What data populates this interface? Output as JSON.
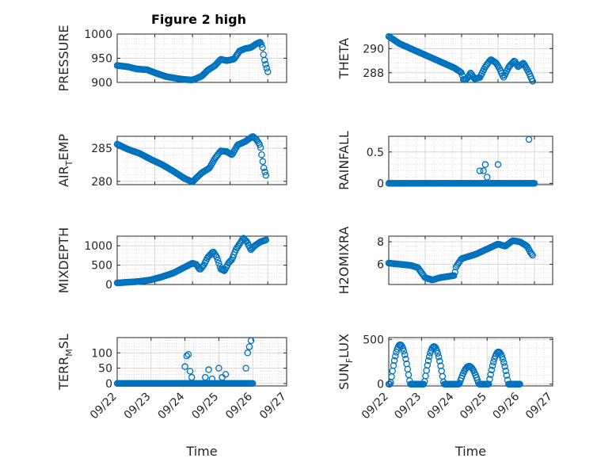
{
  "figure": {
    "title": "Figure 2 high"
  },
  "chart_data": [
    {
      "type": "scatter",
      "ylabel": "PRESSURE",
      "xlabel": "",
      "title": "Figure 2 high",
      "xlim": [
        "09/22",
        "09/26 12:00"
      ],
      "ylim": [
        900,
        1000
      ],
      "yticks": [
        900,
        950,
        1000
      ],
      "ytick_labels": [
        "900",
        "950",
        "1000"
      ],
      "grid": true,
      "minor_grid": true,
      "marker_color": "#0072BD",
      "keypoints": [
        [
          0.0,
          935
        ],
        [
          0.3,
          932
        ],
        [
          0.5,
          928
        ],
        [
          0.8,
          926
        ],
        [
          1.0,
          920
        ],
        [
          1.3,
          912
        ],
        [
          1.6,
          908
        ],
        [
          1.8,
          906
        ],
        [
          2.0,
          905
        ],
        [
          2.1,
          908
        ],
        [
          2.25,
          913
        ],
        [
          2.4,
          925
        ],
        [
          2.6,
          935
        ],
        [
          2.75,
          948
        ],
        [
          2.9,
          945
        ],
        [
          3.1,
          948
        ],
        [
          3.25,
          965
        ],
        [
          3.4,
          970
        ],
        [
          3.55,
          972
        ],
        [
          3.7,
          980
        ],
        [
          3.8,
          983
        ],
        [
          3.85,
          975
        ],
        [
          3.9,
          950
        ],
        [
          3.95,
          935
        ],
        [
          4.0,
          922
        ]
      ]
    },
    {
      "type": "scatter",
      "ylabel": "THETA",
      "xlabel": "",
      "xlim": [
        "09/22",
        "09/26 12:00"
      ],
      "ylim": [
        287.2,
        291.2
      ],
      "yticks": [
        288,
        290
      ],
      "ytick_labels": [
        "288",
        "290"
      ],
      "grid": true,
      "minor_grid": true,
      "marker_color": "#0072BD",
      "keypoints": [
        [
          0.0,
          291.0
        ],
        [
          0.3,
          290.4
        ],
        [
          0.6,
          290.0
        ],
        [
          0.9,
          289.6
        ],
        [
          1.2,
          289.2
        ],
        [
          1.5,
          288.8
        ],
        [
          1.8,
          288.4
        ],
        [
          2.0,
          288.0
        ],
        [
          2.05,
          287.4
        ],
        [
          2.15,
          287.5
        ],
        [
          2.25,
          288.0
        ],
        [
          2.35,
          287.5
        ],
        [
          2.5,
          287.6
        ],
        [
          2.65,
          288.5
        ],
        [
          2.8,
          289.1
        ],
        [
          2.95,
          288.8
        ],
        [
          3.05,
          288.3
        ],
        [
          3.15,
          287.6
        ],
        [
          3.3,
          288.5
        ],
        [
          3.45,
          289.0
        ],
        [
          3.55,
          288.5
        ],
        [
          3.7,
          288.8
        ],
        [
          3.85,
          288.0
        ],
        [
          3.95,
          287.3
        ]
      ]
    },
    {
      "type": "scatter",
      "ylabel": "AIR_TEMP",
      "xlabel": "",
      "xlim": [
        "09/22",
        "09/26 12:00"
      ],
      "ylim": [
        279.5,
        286.8
      ],
      "yticks": [
        280,
        285
      ],
      "ytick_labels": [
        "280",
        "285"
      ],
      "grid": true,
      "minor_grid": true,
      "marker_color": "#0072BD",
      "keypoints": [
        [
          0.0,
          285.6
        ],
        [
          0.3,
          284.8
        ],
        [
          0.6,
          284.2
        ],
        [
          0.9,
          283.3
        ],
        [
          1.2,
          282.5
        ],
        [
          1.5,
          281.5
        ],
        [
          1.8,
          280.4
        ],
        [
          2.0,
          279.9
        ],
        [
          2.1,
          280.5
        ],
        [
          2.25,
          281.3
        ],
        [
          2.45,
          282.0
        ],
        [
          2.6,
          283.5
        ],
        [
          2.75,
          284.6
        ],
        [
          2.9,
          284.5
        ],
        [
          3.05,
          284.0
        ],
        [
          3.2,
          285.5
        ],
        [
          3.4,
          286.0
        ],
        [
          3.6,
          286.8
        ],
        [
          3.7,
          286.3
        ],
        [
          3.8,
          285.4
        ],
        [
          3.85,
          283.5
        ],
        [
          3.9,
          281.8
        ],
        [
          3.95,
          280.9
        ]
      ]
    },
    {
      "type": "scatter",
      "ylabel": "RAINFALL",
      "xlabel": "",
      "xlim": [
        "09/22",
        "09/26 12:00"
      ],
      "ylim": [
        -0.02,
        0.75
      ],
      "yticks": [
        0,
        0.5
      ],
      "ytick_labels": [
        "0",
        "0.5"
      ],
      "grid": true,
      "minor_grid": true,
      "marker_color": "#0072BD",
      "baseline": 0,
      "spikes": [
        [
          2.5,
          0.2
        ],
        [
          2.6,
          0.2
        ],
        [
          2.65,
          0.3
        ],
        [
          2.7,
          0.1
        ],
        [
          3.0,
          0.3
        ],
        [
          3.85,
          0.7
        ]
      ]
    },
    {
      "type": "scatter",
      "ylabel": "MIXDEPTH",
      "xlabel": "",
      "xlim": [
        "09/22",
        "09/26 12:00"
      ],
      "ylim": [
        0,
        1250
      ],
      "yticks": [
        0,
        500,
        1000
      ],
      "ytick_labels": [
        "0",
        "500",
        "1000"
      ],
      "grid": true,
      "minor_grid": true,
      "marker_color": "#0072BD",
      "keypoints": [
        [
          0.0,
          40
        ],
        [
          0.3,
          60
        ],
        [
          0.6,
          80
        ],
        [
          0.9,
          120
        ],
        [
          1.2,
          200
        ],
        [
          1.5,
          300
        ],
        [
          1.8,
          450
        ],
        [
          2.0,
          550
        ],
        [
          2.1,
          520
        ],
        [
          2.2,
          380
        ],
        [
          2.3,
          500
        ],
        [
          2.4,
          700
        ],
        [
          2.55,
          850
        ],
        [
          2.65,
          700
        ],
        [
          2.75,
          400
        ],
        [
          2.85,
          350
        ],
        [
          2.95,
          550
        ],
        [
          3.05,
          650
        ],
        [
          3.15,
          900
        ],
        [
          3.25,
          1050
        ],
        [
          3.35,
          1200
        ],
        [
          3.45,
          1100
        ],
        [
          3.55,
          900
        ],
        [
          3.65,
          1000
        ],
        [
          3.8,
          1100
        ],
        [
          3.95,
          1150
        ]
      ]
    },
    {
      "type": "scatter",
      "ylabel": "H2OMIXRA",
      "xlabel": "",
      "xlim": [
        "09/22",
        "09/26 12:00"
      ],
      "ylim": [
        4.2,
        8.5
      ],
      "yticks": [
        6,
        8
      ],
      "ytick_labels": [
        "6",
        "8"
      ],
      "grid": true,
      "minor_grid": true,
      "marker_color": "#0072BD",
      "keypoints": [
        [
          0.0,
          6.1
        ],
        [
          0.3,
          6.0
        ],
        [
          0.6,
          5.9
        ],
        [
          0.8,
          5.7
        ],
        [
          1.0,
          4.8
        ],
        [
          1.2,
          4.6
        ],
        [
          1.4,
          4.8
        ],
        [
          1.6,
          4.9
        ],
        [
          1.8,
          5.0
        ],
        [
          1.85,
          5.8
        ],
        [
          2.0,
          6.5
        ],
        [
          2.2,
          6.7
        ],
        [
          2.4,
          6.9
        ],
        [
          2.6,
          7.2
        ],
        [
          2.8,
          7.5
        ],
        [
          3.0,
          7.8
        ],
        [
          3.2,
          7.6
        ],
        [
          3.4,
          8.1
        ],
        [
          3.6,
          8.0
        ],
        [
          3.8,
          7.6
        ],
        [
          3.9,
          7.0
        ],
        [
          3.95,
          6.8
        ]
      ]
    },
    {
      "type": "scatter",
      "ylabel": "TERR_MSL",
      "xlabel": "Time",
      "xlim": [
        "09/22",
        "09/27"
      ],
      "xticks": [
        "09/22",
        "09/23",
        "09/24",
        "09/25",
        "09/26",
        "09/27"
      ],
      "ylim": [
        -8,
        150
      ],
      "yticks": [
        0,
        50,
        100
      ],
      "ytick_labels": [
        "0",
        "50",
        "100"
      ],
      "grid": true,
      "minor_grid": true,
      "marker_color": "#0072BD",
      "baseline": 0,
      "spikes": [
        [
          2.0,
          55
        ],
        [
          2.05,
          90
        ],
        [
          2.1,
          95
        ],
        [
          2.15,
          40
        ],
        [
          2.2,
          20
        ],
        [
          2.6,
          20
        ],
        [
          2.7,
          45
        ],
        [
          2.8,
          15
        ],
        [
          3.0,
          50
        ],
        [
          3.1,
          20
        ],
        [
          3.2,
          30
        ],
        [
          3.8,
          50
        ],
        [
          3.85,
          100
        ],
        [
          3.9,
          120
        ],
        [
          3.95,
          140
        ]
      ]
    },
    {
      "type": "scatter",
      "ylabel": "SUN_FLUX",
      "xlabel": "Time",
      "xlim": [
        "09/22",
        "09/27"
      ],
      "xticks": [
        "09/22",
        "09/23",
        "09/24",
        "09/25",
        "09/26",
        "09/27"
      ],
      "ylim": [
        -20,
        520
      ],
      "yticks": [
        0,
        500
      ],
      "ytick_labels": [
        "0",
        "500"
      ],
      "grid": true,
      "minor_grid": true,
      "marker_color": "#0072BD",
      "daylight_arches": [
        [
          0.05,
          0.65,
          440
        ],
        [
          1.08,
          1.68,
          420
        ],
        [
          2.15,
          2.75,
          200
        ],
        [
          3.05,
          3.65,
          360
        ]
      ]
    }
  ]
}
